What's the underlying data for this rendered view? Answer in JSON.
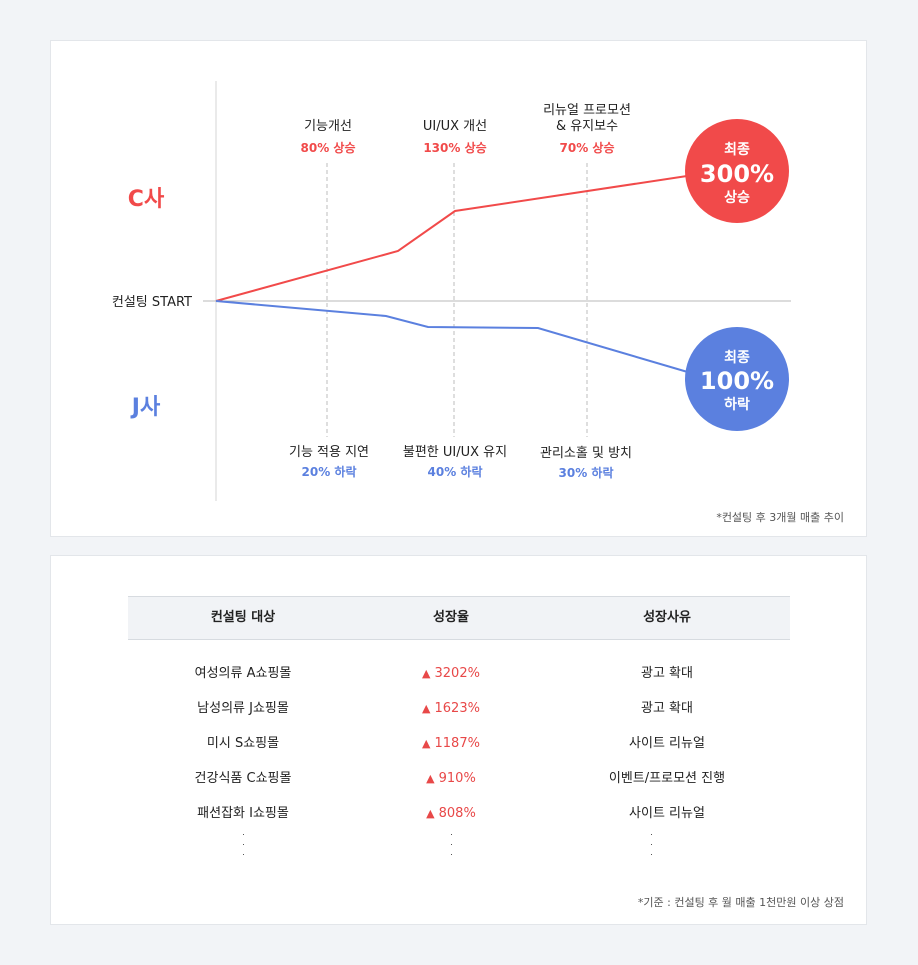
{
  "chart_data": {
    "type": "line",
    "origin_label": "컨설팅 START",
    "companies": [
      {
        "name": "C사",
        "color": "#f14a4a"
      },
      {
        "name": "J사",
        "color": "#5b80df"
      }
    ],
    "milestones_c": [
      {
        "title": "기능개선",
        "value": "80% 상승"
      },
      {
        "title": "UI/UX 개선",
        "value": "130% 상승"
      },
      {
        "title": "리뉴얼 프로모션\n& 유지보수",
        "value": "70% 상승"
      }
    ],
    "milestones_j": [
      {
        "title": "기능 적용 지연",
        "value": "20% 하락"
      },
      {
        "title": "불편한 UI/UX 유지",
        "value": "40% 하락"
      },
      {
        "title": "관리소홀 및 방치",
        "value": "30% 하락"
      }
    ],
    "final_c": {
      "top": "최종",
      "value": "300%",
      "bottom": "상승",
      "color": "#f14a4a"
    },
    "final_j": {
      "top": "최종",
      "value": "100%",
      "bottom": "하락",
      "color": "#5b80df"
    },
    "note": "*컨설팅 후 3개월 매출 추이"
  },
  "table": {
    "headers": [
      "컨설팅 대상",
      "성장율",
      "성장사유"
    ],
    "rows": [
      {
        "target": "여성의류 A쇼핑몰",
        "rate": "3202%",
        "reason": "광고 확대"
      },
      {
        "target": "남성의류 J쇼핑몰",
        "rate": "1623%",
        "reason": "광고 확대"
      },
      {
        "target": "미시 S쇼핑몰",
        "rate": "1187%",
        "reason": "사이트 리뉴얼"
      },
      {
        "target": "건강식품 C쇼핑몰",
        "rate": "910%",
        "reason": "이벤트/프로모션 진행"
      },
      {
        "target": "패션잡화 I쇼핑몰",
        "rate": "808%",
        "reason": "사이트 리뉴얼"
      }
    ],
    "up_symbol": "▲",
    "note": "*기준 : 컨설팅 후 월 매출 1천만원 이상 상점"
  }
}
